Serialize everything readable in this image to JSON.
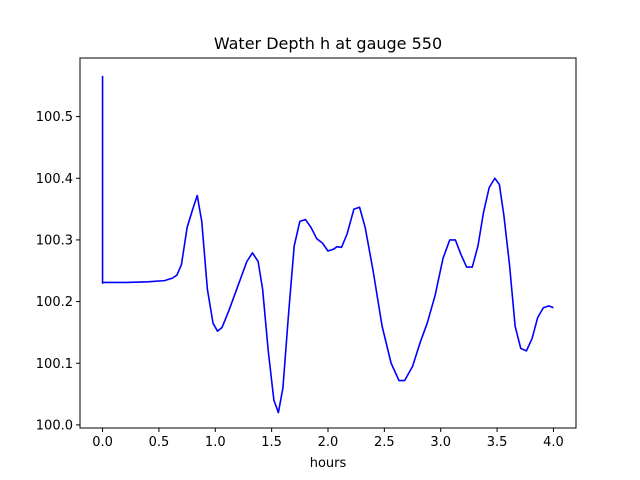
{
  "chart_data": {
    "type": "line",
    "title": "Water Depth h at gauge 550",
    "xlabel": "hours",
    "ylabel": "",
    "xlim": [
      -0.2,
      4.2
    ],
    "ylim": [
      99.995,
      100.595
    ],
    "xticks": [
      0.0,
      0.5,
      1.0,
      1.5,
      2.0,
      2.5,
      3.0,
      3.5,
      4.0
    ],
    "xtick_labels": [
      "0.0",
      "0.5",
      "1.0",
      "1.5",
      "2.0",
      "2.5",
      "3.0",
      "3.5",
      "4.0"
    ],
    "yticks": [
      100.0,
      100.1,
      100.2,
      100.3,
      100.4,
      100.5
    ],
    "ytick_labels": [
      "100.0",
      "100.1",
      "100.2",
      "100.3",
      "100.4",
      "100.5"
    ],
    "grid": false,
    "line_color": "#0000ff",
    "series": [
      {
        "x": [
          0.0,
          0.0,
          0.0,
          0.2,
          0.4,
          0.55,
          0.62,
          0.66,
          0.7,
          0.75,
          0.8,
          0.84,
          0.88,
          0.93,
          0.98,
          1.02,
          1.06,
          1.12,
          1.2,
          1.28,
          1.33,
          1.38,
          1.42,
          1.47,
          1.52,
          1.56,
          1.6,
          1.65,
          1.7,
          1.75,
          1.8,
          1.85,
          1.9,
          1.95,
          2.0,
          2.05,
          2.08,
          2.12,
          2.17,
          2.23,
          2.28,
          2.33,
          2.4,
          2.48,
          2.56,
          2.63,
          2.68,
          2.75,
          2.82,
          2.88,
          2.95,
          3.02,
          3.08,
          3.13,
          3.18,
          3.23,
          3.28,
          3.33,
          3.38,
          3.43,
          3.48,
          3.52,
          3.56,
          3.61,
          3.66,
          3.71,
          3.76,
          3.81,
          3.86,
          3.91,
          3.96,
          4.0
        ],
        "y": [
          100.566,
          100.23,
          100.231,
          100.231,
          100.232,
          100.234,
          100.238,
          100.243,
          100.26,
          100.32,
          100.35,
          100.372,
          100.33,
          100.22,
          100.165,
          100.152,
          100.158,
          100.185,
          100.225,
          100.265,
          100.279,
          100.265,
          100.22,
          100.12,
          100.04,
          100.02,
          100.06,
          100.18,
          100.29,
          100.33,
          100.333,
          100.32,
          100.302,
          100.295,
          100.282,
          100.285,
          100.289,
          100.288,
          100.31,
          100.35,
          100.353,
          100.32,
          100.25,
          100.16,
          100.1,
          100.072,
          100.072,
          100.095,
          100.135,
          100.165,
          100.21,
          100.27,
          100.3,
          100.3,
          100.276,
          100.256,
          100.256,
          100.29,
          100.345,
          100.385,
          100.4,
          100.39,
          100.34,
          100.26,
          100.16,
          100.124,
          100.12,
          100.14,
          100.174,
          100.19,
          100.193,
          100.19
        ]
      }
    ]
  }
}
